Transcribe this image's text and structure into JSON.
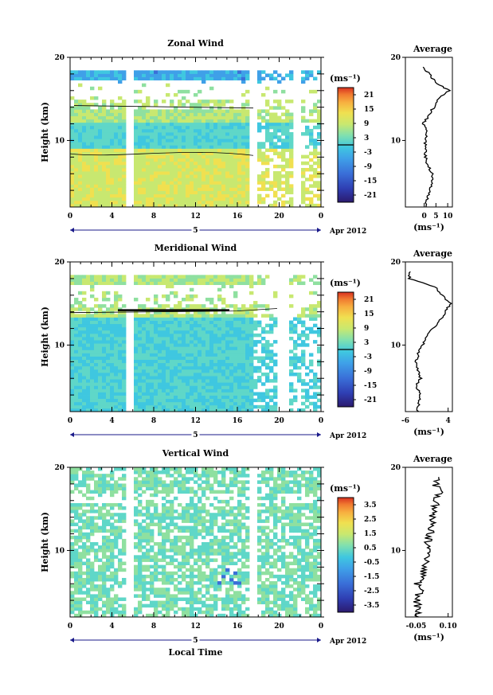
{
  "figure": {
    "date_label": "Apr 2012",
    "day_label": "5",
    "xlabel": "Local Time",
    "ylabel": "Height (km)",
    "unit_label": "(ms⁻¹)",
    "profile_unit": "(ms⁻¹)",
    "x_ticks": [
      "0",
      "4",
      "8",
      "12",
      "16",
      "20",
      "0"
    ],
    "y_ticks": [
      "10",
      "20"
    ]
  },
  "colorscale": [
    "#2b1a6e",
    "#2f3fb3",
    "#3a6fd8",
    "#3fa0e8",
    "#3fc7e0",
    "#5fd7c8",
    "#8fe0a0",
    "#c8e870",
    "#f0e050",
    "#f7b040",
    "#f07a30",
    "#d83020"
  ],
  "chart_data": [
    {
      "type": "heatmap",
      "title": "Zonal Wind",
      "xlabel": "",
      "ylabel": "Height (km)",
      "xlim": [
        0,
        24
      ],
      "ylim": [
        2,
        20
      ],
      "x_ticks": [
        0,
        4,
        8,
        12,
        16,
        20,
        24
      ],
      "colorbar": {
        "label": "(ms⁻¹)",
        "range": [
          -24,
          24
        ],
        "ticks": [
          "21",
          "15",
          "9",
          "3",
          "-3",
          "-9",
          "-15",
          "-21"
        ]
      },
      "gaps_hours": [
        [
          5.5,
          6.0
        ],
        [
          17.3,
          17.8
        ],
        [
          21.5,
          22.0
        ]
      ],
      "data_top_km": 18.6,
      "profile": {
        "title": "Average",
        "xlim": [
          -8,
          12
        ],
        "x_ticks": [
          "0",
          "5",
          "10"
        ],
        "height_km": [
          2,
          3,
          4,
          5,
          6,
          7,
          8,
          9,
          10,
          11,
          12,
          13,
          14,
          15,
          16,
          17,
          18,
          19
        ],
        "values": [
          0.5,
          1.5,
          2.5,
          3.0,
          3.5,
          1.5,
          0.5,
          0.5,
          0.5,
          1.5,
          -0.5,
          2.0,
          4.0,
          6.0,
          10.5,
          5.0,
          2.0,
          -1.0
        ]
      }
    },
    {
      "type": "heatmap",
      "title": "Meridional Wind",
      "xlabel": "",
      "ylabel": "Height (km)",
      "xlim": [
        0,
        24
      ],
      "ylim": [
        2,
        20
      ],
      "x_ticks": [
        0,
        4,
        8,
        12,
        16,
        20,
        24
      ],
      "colorbar": {
        "label": "(ms⁻¹)",
        "range": [
          -24,
          24
        ],
        "ticks": [
          "21",
          "15",
          "9",
          "3",
          "-3",
          "-9",
          "-15",
          "-21"
        ]
      },
      "gaps_hours": [
        [
          5.5,
          6.0
        ],
        [
          20.0,
          21.0
        ]
      ],
      "data_top_km": 18.6,
      "profile": {
        "title": "Average",
        "xlim": [
          -6,
          5
        ],
        "x_ticks": [
          "-6",
          "4"
        ],
        "height_km": [
          2,
          3,
          4,
          5,
          6,
          7,
          8,
          9,
          10,
          11,
          12,
          13,
          14,
          15,
          16,
          17,
          18,
          19
        ],
        "values": [
          -3.0,
          -3.0,
          -2.5,
          -3.5,
          -2.5,
          -3.0,
          -3.5,
          -3.0,
          -2.0,
          -1.0,
          0.5,
          2.0,
          3.5,
          4.5,
          2.5,
          1.0,
          -5.0,
          -5.0
        ]
      }
    },
    {
      "type": "heatmap",
      "title": "Vertical Wind",
      "xlabel": "Local Time",
      "ylabel": "Height (km)",
      "xlim": [
        0,
        24
      ],
      "ylim": [
        2,
        20
      ],
      "x_ticks": [
        0,
        4,
        8,
        12,
        16,
        20,
        24
      ],
      "colorbar": {
        "label": "(ms⁻¹)",
        "range": [
          -4,
          4
        ],
        "ticks": [
          "3.5",
          "2.5",
          "1.5",
          "0.5",
          "-0.5",
          "-1.5",
          "-2.5",
          "-3.5"
        ]
      },
      "gaps_hours": [
        [
          5.5,
          6.0
        ],
        [
          17.3,
          17.8
        ]
      ],
      "data_top_km": 20,
      "profile": {
        "title": "Average",
        "xlim": [
          -0.1,
          0.12
        ],
        "x_ticks": [
          "-0.05",
          "0.10"
        ],
        "height_km": [
          2,
          3,
          4,
          5,
          6,
          7,
          8,
          9,
          10,
          11,
          12,
          13,
          14,
          15,
          16,
          17,
          18,
          19
        ],
        "values": [
          -0.05,
          -0.04,
          -0.05,
          -0.03,
          -0.04,
          -0.02,
          -0.01,
          0.0,
          0.01,
          0.0,
          0.02,
          0.03,
          0.02,
          0.04,
          0.05,
          0.06,
          0.04,
          0.07
        ]
      }
    }
  ]
}
